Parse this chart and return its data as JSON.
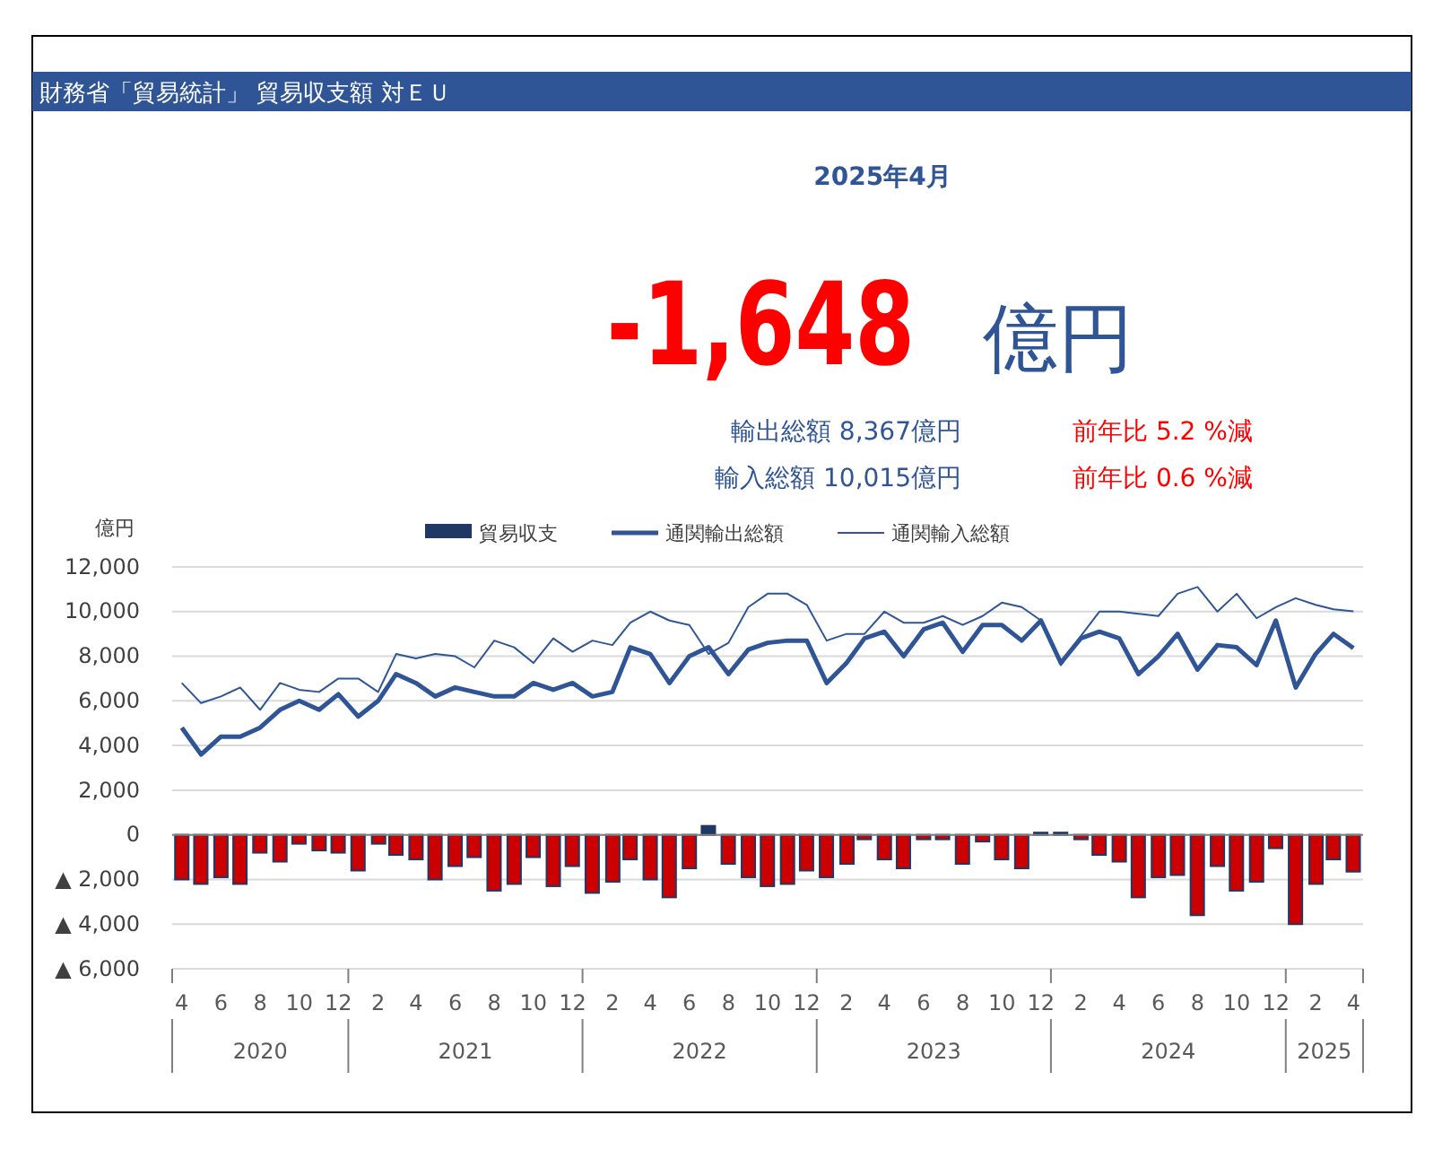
{
  "chart_data": {
    "type": "bar",
    "title": "財務省「貿易統計」 貿易収支額 対ＥＵ",
    "ylabel": "億円",
    "annotations": [
      "2025年4月",
      "-1,648",
      "億円",
      "輸出総額 8,367億円",
      "前年比 5.2 %減",
      "輸入総額 10,015億円",
      "前年比 0.6 %減",
      "2020",
      "2021",
      "2022",
      "2023",
      "2024",
      "2025"
    ],
    "x": [
      "2020-04",
      "2020-05",
      "2020-06",
      "2020-07",
      "2020-08",
      "2020-09",
      "2020-10",
      "2020-11",
      "2020-12",
      "2021-01",
      "2021-02",
      "2021-03",
      "2021-04",
      "2021-05",
      "2021-06",
      "2021-07",
      "2021-08",
      "2021-09",
      "2021-10",
      "2021-11",
      "2021-12",
      "2022-01",
      "2022-02",
      "2022-03",
      "2022-04",
      "2022-05",
      "2022-06",
      "2022-07",
      "2022-08",
      "2022-09",
      "2022-10",
      "2022-11",
      "2022-12",
      "2023-01",
      "2023-02",
      "2023-03",
      "2023-04",
      "2023-05",
      "2023-06",
      "2023-07",
      "2023-08",
      "2023-09",
      "2023-10",
      "2023-11",
      "2023-12",
      "2024-01",
      "2024-02",
      "2024-03",
      "2024-04",
      "2024-05",
      "2024-06",
      "2024-07",
      "2024-08",
      "2024-09",
      "2024-10",
      "2024-11",
      "2024-12",
      "2025-01",
      "2025-02",
      "2025-03",
      "2025-04"
    ],
    "xlim": [
      "2020-03-17",
      "2025-04-16"
    ],
    "xticks": [
      {
        "value": "2020-04",
        "label": "4"
      },
      {
        "value": "2020-06",
        "label": "6"
      },
      {
        "value": "2020-08",
        "label": "8"
      },
      {
        "value": "2020-10",
        "label": "10"
      },
      {
        "value": "2020-12",
        "label": "12"
      },
      {
        "value": "2021-02",
        "label": "2"
      },
      {
        "value": "2021-04",
        "label": "4"
      },
      {
        "value": "2021-06",
        "label": "6"
      },
      {
        "value": "2021-08",
        "label": "8"
      },
      {
        "value": "2021-10",
        "label": "10"
      },
      {
        "value": "2021-12",
        "label": "12"
      },
      {
        "value": "2022-02",
        "label": "2"
      },
      {
        "value": "2022-04",
        "label": "4"
      },
      {
        "value": "2022-06",
        "label": "6"
      },
      {
        "value": "2022-08",
        "label": "8"
      },
      {
        "value": "2022-10",
        "label": "10"
      },
      {
        "value": "2022-12",
        "label": "12"
      },
      {
        "value": "2023-02",
        "label": "2"
      },
      {
        "value": "2023-04",
        "label": "4"
      },
      {
        "value": "2023-06",
        "label": "6"
      },
      {
        "value": "2023-08",
        "label": "8"
      },
      {
        "value": "2023-10",
        "label": "10"
      },
      {
        "value": "2023-12",
        "label": "12"
      },
      {
        "value": "2024-02",
        "label": "2"
      },
      {
        "value": "2024-04",
        "label": "4"
      },
      {
        "value": "2024-06",
        "label": "6"
      },
      {
        "value": "2024-08",
        "label": "8"
      },
      {
        "value": "2024-10",
        "label": "10"
      },
      {
        "value": "2024-12",
        "label": "12"
      },
      {
        "value": "2025-02",
        "label": "2"
      },
      {
        "value": "2025-04",
        "label": "4"
      }
    ],
    "ylim": [
      -6000,
      12000
    ],
    "yticks": [
      {
        "value": -6000,
        "label": "▲ 6,000"
      },
      {
        "value": -4000,
        "label": "▲ 4,000"
      },
      {
        "value": -2000,
        "label": "▲ 2,000"
      },
      0,
      {
        "value": 2000,
        "label": "2,000"
      },
      {
        "value": 4000,
        "label": "4,000"
      },
      {
        "value": 6000,
        "label": "6,000"
      },
      {
        "value": 8000,
        "label": "8,000"
      },
      {
        "value": 10000,
        "label": "10,000"
      },
      {
        "value": 12000,
        "label": "12,000"
      }
    ],
    "grid": "y",
    "legend": "top",
    "series": [
      {
        "name": "貿易収支",
        "color": "#203864",
        "colors": [
          "#cc0000",
          "#cc0000",
          "#cc0000",
          "#cc0000",
          "#cc0000",
          "#cc0000",
          "#cc0000",
          "#cc0000",
          "#cc0000",
          "#cc0000",
          "#cc0000",
          "#cc0000",
          "#cc0000",
          "#cc0000",
          "#cc0000",
          "#cc0000",
          "#cc0000",
          "#cc0000",
          "#cc0000",
          "#cc0000",
          "#cc0000",
          "#cc0000",
          "#cc0000",
          "#cc0000",
          "#cc0000",
          "#cc0000",
          "#cc0000",
          "#203864",
          "#cc0000",
          "#cc0000",
          "#cc0000",
          "#cc0000",
          "#cc0000",
          "#cc0000",
          "#cc0000",
          "#cc0000",
          "#cc0000",
          "#cc0000",
          "#cc0000",
          "#cc0000",
          "#cc0000",
          "#cc0000",
          "#cc0000",
          "#cc0000",
          "#203864",
          "#203864",
          "#cc0000",
          "#cc0000",
          "#cc0000",
          "#cc0000",
          "#cc0000",
          "#cc0000",
          "#cc0000",
          "#cc0000",
          "#cc0000",
          "#cc0000",
          "#cc0000",
          "#cc0000",
          "#cc0000",
          "#cc0000",
          "#cc0000"
        ],
        "values": [
          -2000,
          -2200,
          -1900,
          -2200,
          -800,
          -1200,
          -400,
          -700,
          -800,
          -1600,
          -400,
          -900,
          -1100,
          -2000,
          -1400,
          -1000,
          -2500,
          -2200,
          -1000,
          -2300,
          -1400,
          -2600,
          -2100,
          -1100,
          -2000,
          -2800,
          -1500,
          400,
          -1300,
          -1900,
          -2300,
          -2200,
          -1600,
          -1900,
          -1300,
          -200,
          -1100,
          -1500,
          -200,
          -200,
          -1300,
          -300,
          -1100,
          -1500,
          100,
          100,
          -200,
          -900,
          -1200,
          -2800,
          -1900,
          -1800,
          -3600,
          -1400,
          -2500,
          -2100,
          -600,
          -4000,
          -2200,
          -1100,
          -1648
        ]
      },
      {
        "name": "通関輸出総額",
        "type": "line",
        "color": "#2f5597",
        "values": [
          4800,
          3600,
          4400,
          4400,
          4800,
          5600,
          6000,
          5600,
          6300,
          5300,
          6000,
          7200,
          6800,
          6200,
          6600,
          6400,
          6200,
          6200,
          6800,
          6500,
          6800,
          6200,
          6400,
          8400,
          8100,
          6800,
          8000,
          8400,
          7200,
          8300,
          8600,
          8700,
          8700,
          6800,
          7700,
          8800,
          9100,
          8000,
          9200,
          9500,
          8200,
          9400,
          9400,
          8700,
          9600,
          7700,
          8800,
          9100,
          8800,
          7200,
          8000,
          9000,
          7400,
          8500,
          8400,
          7600,
          9600,
          6600,
          8100,
          9000,
          8367
        ]
      },
      {
        "name": "通関輸入総額",
        "type": "line",
        "color": "#2f5597",
        "values": [
          6800,
          5900,
          6200,
          6600,
          5600,
          6800,
          6500,
          6400,
          7000,
          7000,
          6400,
          8100,
          7900,
          8100,
          8000,
          7500,
          8700,
          8400,
          7700,
          8800,
          8200,
          8700,
          8500,
          9500,
          10000,
          9600,
          9400,
          8100,
          8600,
          10200,
          10800,
          10800,
          10300,
          8700,
          9000,
          9000,
          10000,
          9500,
          9500,
          9800,
          9400,
          9800,
          10400,
          10200,
          9600,
          7600,
          8900,
          10000,
          10000,
          9900,
          9800,
          10800,
          11100,
          10000,
          10800,
          9700,
          10200,
          10600,
          10300,
          10100,
          10015
        ]
      }
    ]
  }
}
